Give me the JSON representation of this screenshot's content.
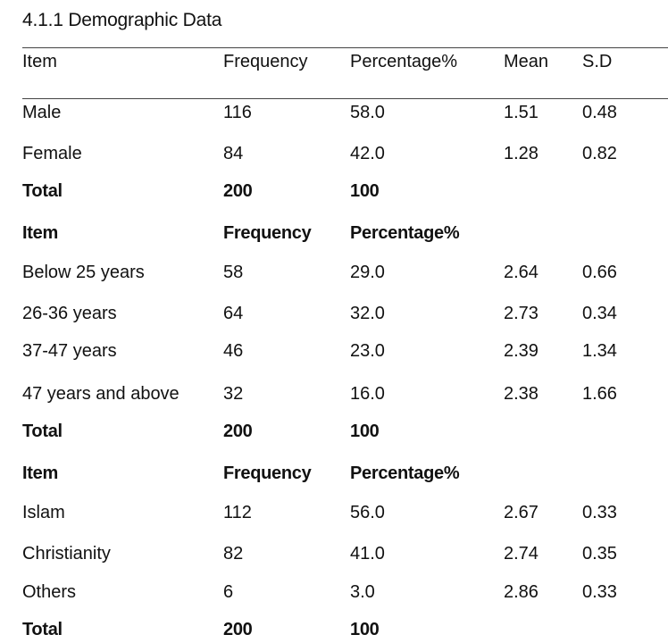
{
  "title": "4.1.1 Demographic Data",
  "header": {
    "item": "Item",
    "frequency": "Frequency",
    "percentage": "Percentage%",
    "mean": "Mean",
    "sd": "S.D"
  },
  "gender": {
    "rows": [
      {
        "item": "Male",
        "frequency": "116",
        "percentage": "58.0",
        "mean": "1.51",
        "sd": "0.48"
      },
      {
        "item": "Female",
        "frequency": "84",
        "percentage": "42.0",
        "mean": "1.28",
        "sd": "0.82"
      }
    ],
    "total": {
      "item": "Total",
      "frequency": "200",
      "percentage": "100"
    }
  },
  "age": {
    "header": {
      "item": "Item",
      "frequency": "Frequency",
      "percentage": "Percentage%"
    },
    "rows": [
      {
        "item": "Below 25 years",
        "frequency": "58",
        "percentage": "29.0",
        "mean": "2.64",
        "sd": "0.66"
      },
      {
        "item": "26-36 years",
        "frequency": "64",
        "percentage": "32.0",
        "mean": "2.73",
        "sd": "0.34"
      },
      {
        "item": "37-47 years",
        "frequency": "46",
        "percentage": "23.0",
        "mean": "2.39",
        "sd": "1.34"
      },
      {
        "item": "47 years and above",
        "frequency": "32",
        "percentage": "16.0",
        "mean": "2.38",
        "sd": "1.66"
      }
    ],
    "total": {
      "item": "Total",
      "frequency": "200",
      "percentage": "100"
    }
  },
  "religion": {
    "header": {
      "item": "Item",
      "frequency": "Frequency",
      "percentage": "Percentage%"
    },
    "rows": [
      {
        "item": "Islam",
        "frequency": "112",
        "percentage": "56.0",
        "mean": "2.67",
        "sd": "0.33"
      },
      {
        "item": "Christianity",
        "frequency": "82",
        "percentage": "41.0",
        "mean": "2.74",
        "sd": "0.35"
      },
      {
        "item": "Others",
        "frequency": "6",
        "percentage": "3.0",
        "mean": "2.86",
        "sd": "0.33"
      }
    ],
    "total": {
      "item": "Total",
      "frequency": "200",
      "percentage": "100"
    }
  }
}
